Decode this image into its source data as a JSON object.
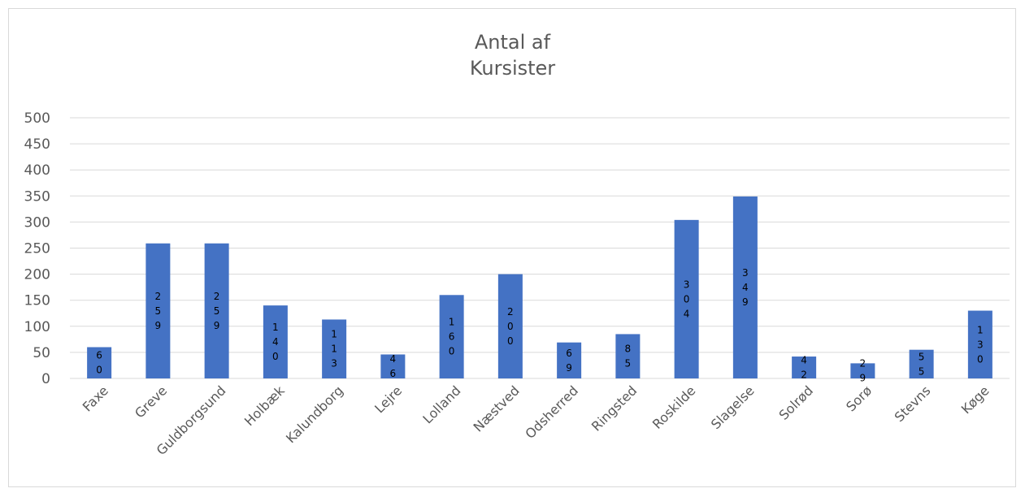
{
  "chart_data": {
    "type": "bar",
    "title_lines": [
      "Antal af",
      "Kursister"
    ],
    "categories": [
      "Faxe",
      "Greve",
      "Guldborgsund",
      "Holbæk",
      "Kalundborg",
      "Lejre",
      "Lolland",
      "Næstved",
      "Odsherred",
      "Ringsted",
      "Roskilde",
      "Slagelse",
      "Solrød",
      "Sorø",
      "Stevns",
      "Køge"
    ],
    "values": [
      60,
      259,
      259,
      140,
      113,
      46,
      160,
      200,
      69,
      85,
      304,
      349,
      42,
      29,
      55,
      130
    ],
    "ylim": [
      0,
      500
    ],
    "yticks": [
      0,
      50,
      100,
      150,
      200,
      250,
      300,
      350,
      400,
      450,
      500
    ],
    "grid": true,
    "legend": "none",
    "bar_color": "#4472c4",
    "gridline_color": "#d9d9d9",
    "text_color": "#595959"
  }
}
